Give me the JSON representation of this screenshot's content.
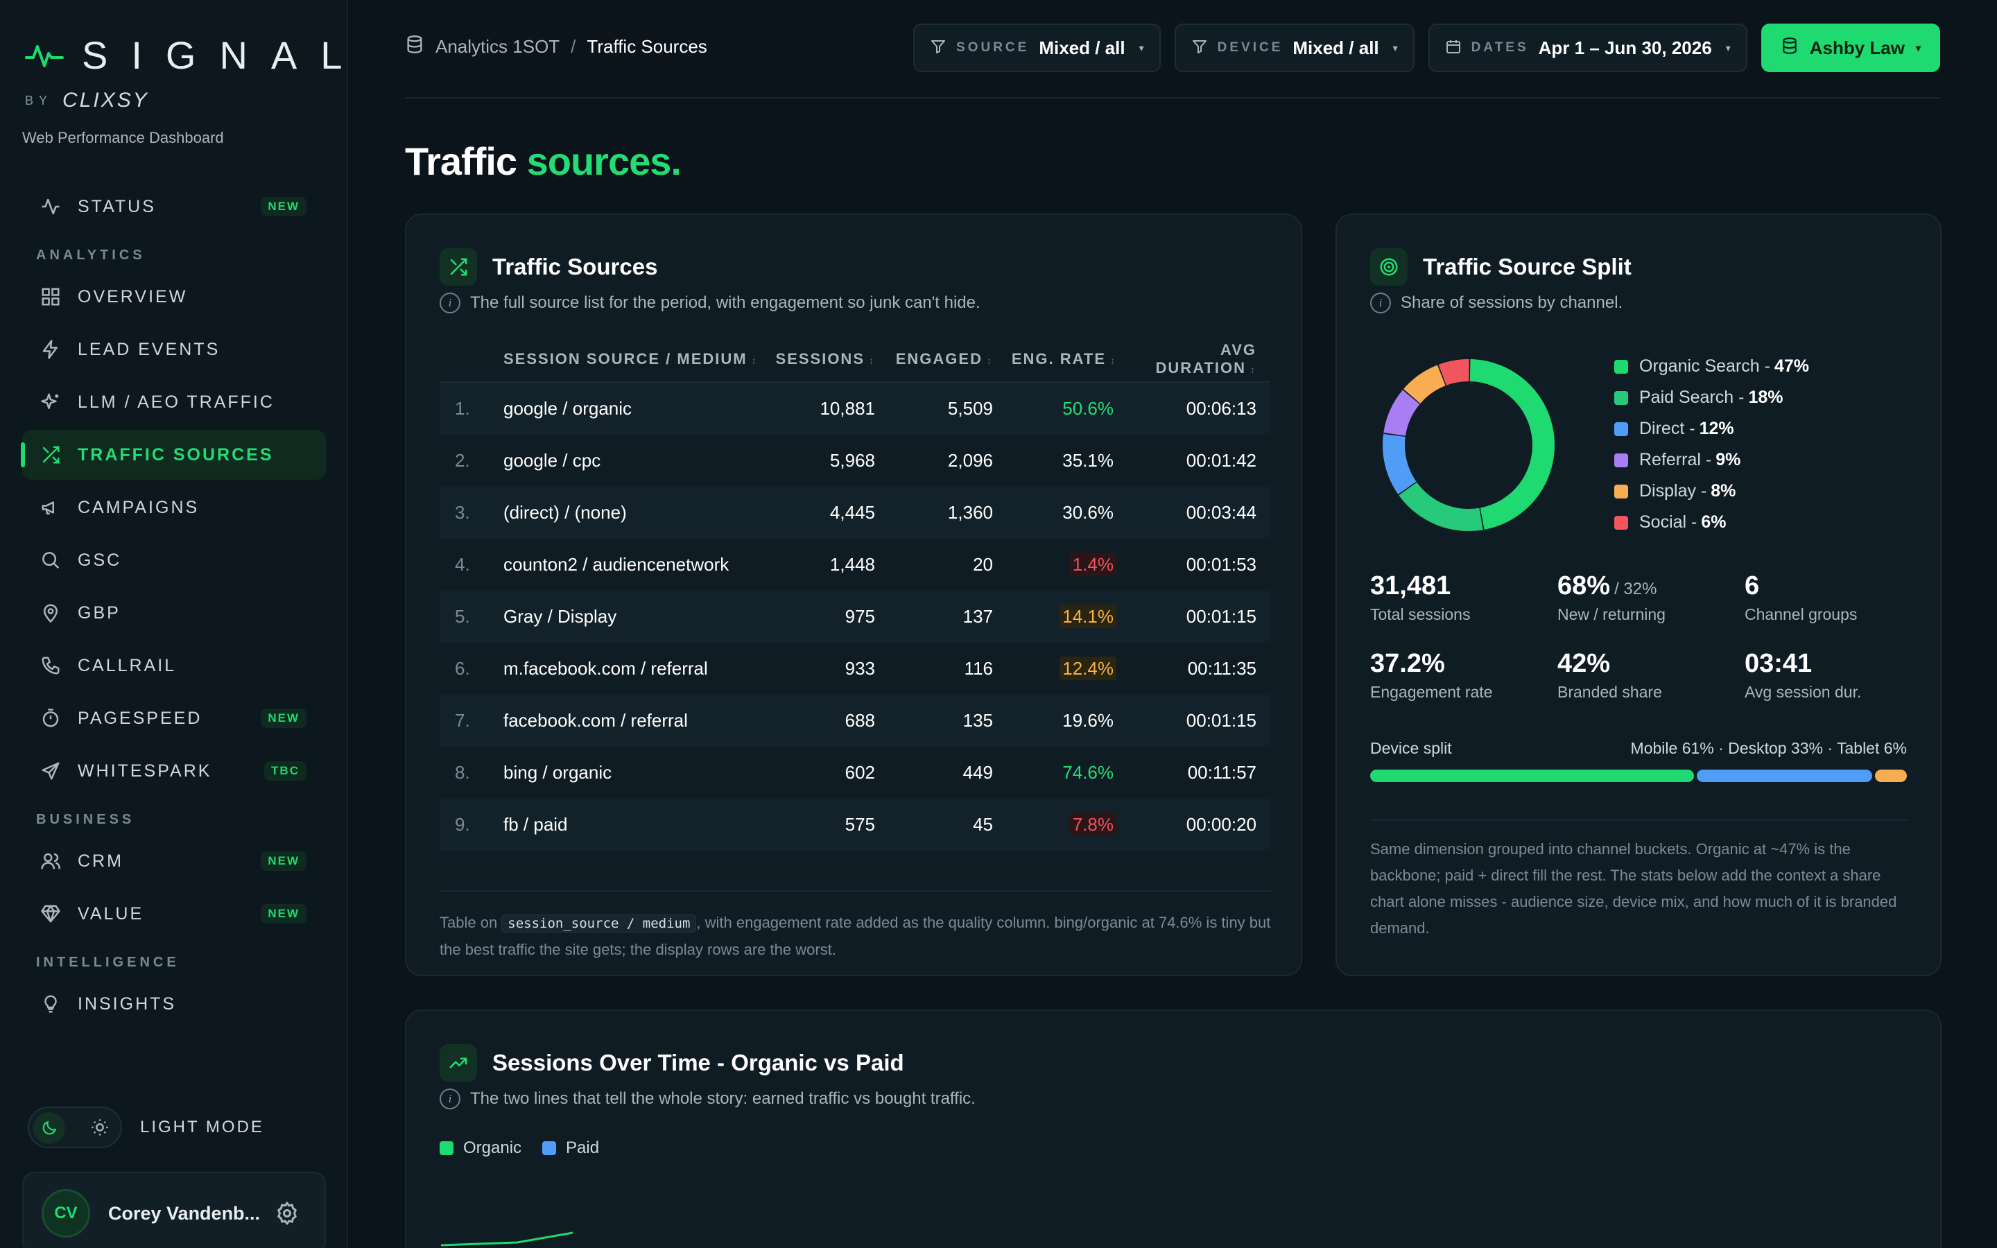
{
  "brand": {
    "wordmark": "SIGNAL",
    "by": "BY",
    "maker": "CLIXSY",
    "tagline": "Web Performance Dashboard"
  },
  "sidebar": {
    "status": {
      "label": "STATUS",
      "badge": "NEW"
    },
    "sections": {
      "analytics": "ANALYTICS",
      "business": "BUSINESS",
      "intelligence": "INTELLIGENCE"
    },
    "analytics_items": [
      {
        "label": "OVERVIEW",
        "badge": ""
      },
      {
        "label": "LEAD EVENTS",
        "badge": ""
      },
      {
        "label": "LLM / AEO TRAFFIC",
        "badge": ""
      },
      {
        "label": "TRAFFIC SOURCES",
        "badge": ""
      },
      {
        "label": "CAMPAIGNS",
        "badge": ""
      },
      {
        "label": "GSC",
        "badge": ""
      },
      {
        "label": "GBP",
        "badge": ""
      },
      {
        "label": "CALLRAIL",
        "badge": ""
      },
      {
        "label": "PAGESPEED",
        "badge": "NEW"
      },
      {
        "label": "WHITESPARK",
        "badge": "TBC"
      }
    ],
    "business_items": [
      {
        "label": "CRM",
        "badge": "NEW"
      },
      {
        "label": "VALUE",
        "badge": "NEW"
      }
    ],
    "intelligence_items": [
      {
        "label": "INSIGHTS",
        "badge": ""
      }
    ],
    "mode_label": "LIGHT MODE",
    "user": {
      "initials": "CV",
      "name": "Corey Vandenb..."
    }
  },
  "topbar": {
    "breadcrumb": {
      "parent": "Analytics 1SOT",
      "sep": "/",
      "current": "Traffic Sources"
    },
    "filters": [
      {
        "key": "SOURCE",
        "value": "Mixed / all"
      },
      {
        "key": "DEVICE",
        "value": "Mixed / all"
      },
      {
        "key": "DATES",
        "value": "Apr 1 – Jun 30, 2026"
      }
    ],
    "client": "Ashby Law"
  },
  "page": {
    "title_main": "Traffic",
    "title_accent": "sources."
  },
  "sources_card": {
    "title": "Traffic Sources",
    "subtitle": "The full source list for the period, with engagement so junk can't hide.",
    "columns": [
      "SESSION SOURCE / MEDIUM",
      "SESSIONS",
      "ENGAGED",
      "ENG. RATE",
      "AVG DURATION"
    ],
    "rows": [
      {
        "n": "1.",
        "src": "google / organic",
        "sessions": "10,881",
        "engaged": "5,509",
        "rate": "50.6%",
        "tone": "good",
        "dur": "00:06:13"
      },
      {
        "n": "2.",
        "src": "google / cpc",
        "sessions": "5,968",
        "engaged": "2,096",
        "rate": "35.1%",
        "tone": "neutral",
        "dur": "00:01:42"
      },
      {
        "n": "3.",
        "src": "(direct) / (none)",
        "sessions": "4,445",
        "engaged": "1,360",
        "rate": "30.6%",
        "tone": "neutral",
        "dur": "00:03:44"
      },
      {
        "n": "4.",
        "src": "counton2 / audiencenetwork",
        "sessions": "1,448",
        "engaged": "20",
        "rate": "1.4%",
        "tone": "bad",
        "dur": "00:01:53"
      },
      {
        "n": "5.",
        "src": "Gray / Display",
        "sessions": "975",
        "engaged": "137",
        "rate": "14.1%",
        "tone": "warn",
        "dur": "00:01:15"
      },
      {
        "n": "6.",
        "src": "m.facebook.com / referral",
        "sessions": "933",
        "engaged": "116",
        "rate": "12.4%",
        "tone": "warn",
        "dur": "00:11:35"
      },
      {
        "n": "7.",
        "src": "facebook.com / referral",
        "sessions": "688",
        "engaged": "135",
        "rate": "19.6%",
        "tone": "neutral",
        "dur": "00:01:15"
      },
      {
        "n": "8.",
        "src": "bing / organic",
        "sessions": "602",
        "engaged": "449",
        "rate": "74.6%",
        "tone": "good",
        "dur": "00:11:57"
      },
      {
        "n": "9.",
        "src": "fb / paid",
        "sessions": "575",
        "engaged": "45",
        "rate": "7.8%",
        "tone": "bad",
        "dur": "00:00:20"
      }
    ],
    "note_pre": "Table on ",
    "note_code": "session_source / medium",
    "note_post": ", with engagement rate added as the quality column. bing/organic at 74.6% is tiny but the best traffic the site gets; the display rows are the worst."
  },
  "split_card": {
    "title": "Traffic Source Split",
    "subtitle": "Share of sessions by channel.",
    "legend": [
      {
        "label": "Organic Search -",
        "pct": "47%",
        "value": 47,
        "color": "#1fd971"
      },
      {
        "label": "Paid Search -",
        "pct": "18%",
        "value": 18,
        "color": "#27c97a"
      },
      {
        "label": "Direct -",
        "pct": "12%",
        "value": 12,
        "color": "#4f9df7"
      },
      {
        "label": "Referral -",
        "pct": "9%",
        "value": 9,
        "color": "#a97ef3"
      },
      {
        "label": "Display -",
        "pct": "8%",
        "value": 8,
        "color": "#f9ad52"
      },
      {
        "label": "Social -",
        "pct": "6%",
        "value": 6,
        "color": "#f1565f"
      }
    ],
    "stats": [
      {
        "value": "31,481",
        "extra": "",
        "label": "Total sessions"
      },
      {
        "value": "68%",
        "extra": "/ 32%",
        "label": "New / returning"
      },
      {
        "value": "6",
        "extra": "",
        "label": "Channel groups"
      },
      {
        "value": "37.2%",
        "extra": "",
        "label": "Engagement rate"
      },
      {
        "value": "42%",
        "extra": "",
        "label": "Branded share"
      },
      {
        "value": "03:41",
        "extra": "",
        "label": "Avg session dur."
      }
    ],
    "device_label": "Device split",
    "device_text": "Mobile 61% · Desktop 33% · Tablet 6%",
    "device_split": [
      {
        "name": "Mobile",
        "value": 61,
        "color": "#1fd971"
      },
      {
        "name": "Desktop",
        "value": 33,
        "color": "#4f9df7"
      },
      {
        "name": "Tablet",
        "value": 6,
        "color": "#f9ad52"
      }
    ],
    "note": "Same dimension grouped into channel buckets. Organic at ~47% is the backbone; paid + direct fill the rest. The stats below add the context a share chart alone misses - audience size, device mix, and how much of it is branded demand."
  },
  "sessions_card": {
    "title": "Sessions Over Time - Organic vs Paid",
    "subtitle": "The two lines that tell the whole story: earned traffic vs bought traffic.",
    "legend": [
      {
        "label": "Organic",
        "color": "#1fd971"
      },
      {
        "label": "Paid",
        "color": "#4f9df7"
      }
    ]
  }
}
